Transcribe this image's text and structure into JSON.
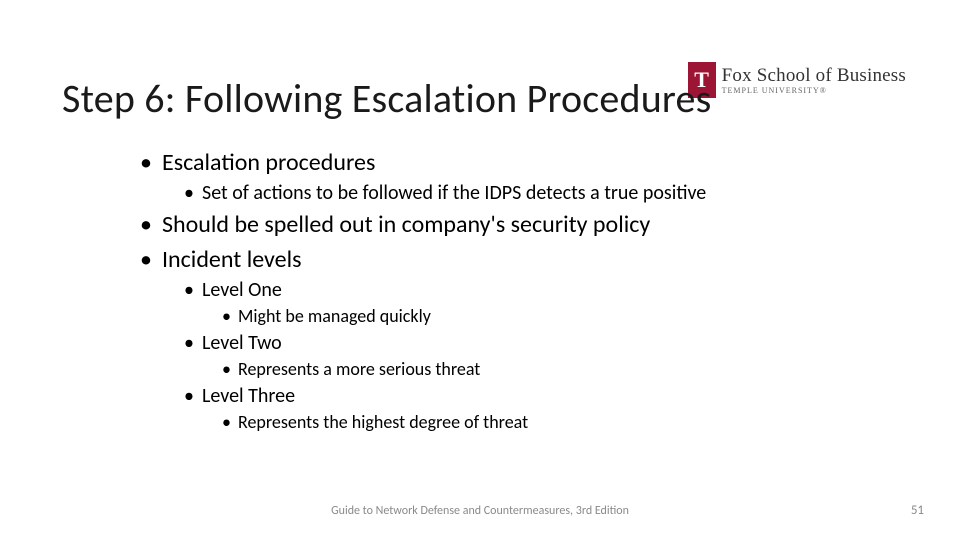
{
  "logo": {
    "main": "Fox School of Business",
    "sub": "TEMPLE UNIVERSITY®"
  },
  "title": "Step 6: Following Escalation Procedures",
  "bullets": {
    "l1": [
      {
        "text": "Escalation procedures",
        "children": [
          {
            "text": "Set of actions to be followed if the IDPS detects a true positive"
          }
        ]
      },
      {
        "text": "Should be spelled out in company's security policy"
      },
      {
        "text": "Incident levels",
        "children": [
          {
            "text": "Level One",
            "children": [
              {
                "text": "Might be managed quickly"
              }
            ]
          },
          {
            "text": "Level Two",
            "children": [
              {
                "text": "Represents a more serious threat"
              }
            ]
          },
          {
            "text": "Level Three",
            "children": [
              {
                "text": "Represents the highest degree of threat"
              }
            ]
          }
        ]
      }
    ]
  },
  "footer": {
    "center": "Guide to Network Defense and Countermeasures, 3rd Edition",
    "page": "51"
  },
  "style": {
    "title_fontsize": 40,
    "lvl1_fontsize": 24,
    "lvl2_fontsize": 20,
    "lvl3_fontsize": 18,
    "footer_fontsize": 12,
    "text_color": "#000000",
    "footer_color": "#8a8a8a",
    "accent_color": "#9d1535",
    "background_color": "#ffffff"
  }
}
